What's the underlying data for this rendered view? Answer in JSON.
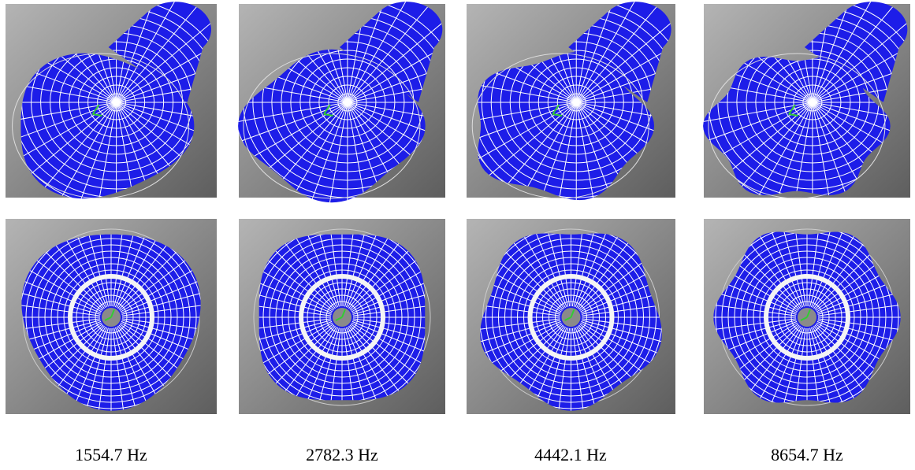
{
  "captions": [
    "1554.7 Hz",
    "2782.3 Hz",
    "4442.1 Hz",
    "8654.7 Hz"
  ]
}
